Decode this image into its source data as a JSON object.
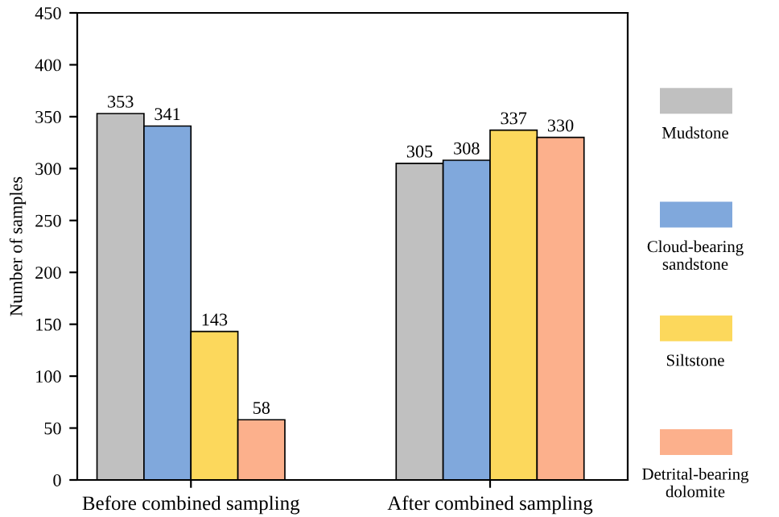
{
  "chart_data": {
    "type": "bar",
    "ylabel": "Number of samples",
    "categories": [
      "Before combined sampling",
      "After combined sampling"
    ],
    "series": [
      {
        "name": "Mudstone",
        "color": "#c0c0c0",
        "values": [
          353,
          305
        ]
      },
      {
        "name": "Cloud-bearing sandstone",
        "color": "#80a8dc",
        "values": [
          341,
          308
        ]
      },
      {
        "name": "Siltstone",
        "color": "#fcd85c",
        "values": [
          143,
          337
        ]
      },
      {
        "name": "Detrital-bearing dolomite",
        "color": "#fcb08c",
        "values": [
          58,
          330
        ]
      }
    ],
    "ylim": [
      0,
      450
    ],
    "yticks": [
      0,
      50,
      100,
      150,
      200,
      250,
      300,
      350,
      400,
      450
    ],
    "data_labels": true,
    "legend": "right",
    "grid": false
  }
}
